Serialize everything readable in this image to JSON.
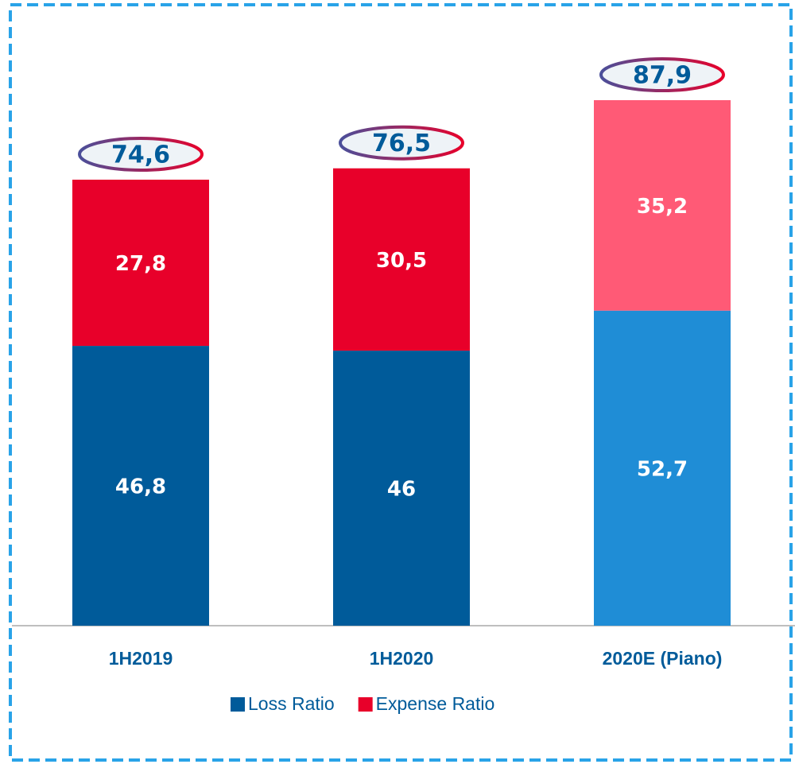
{
  "chart_data": {
    "type": "stacked_bar",
    "categories": [
      "1H2019",
      "1H2020",
      "2020E (Piano)"
    ],
    "series": [
      {
        "name": "Loss Ratio",
        "color": "#005b9a",
        "colors": [
          "#005b9a",
          "#005b9a",
          "#1f8dd6"
        ],
        "values": [
          46.8,
          46,
          52.7
        ],
        "value_labels": [
          "46,8",
          "46",
          "52,7"
        ]
      },
      {
        "name": "Expense Ratio",
        "color": "#e8002a",
        "colors": [
          "#e8002a",
          "#e8002a",
          "#ff5a76"
        ],
        "values": [
          27.8,
          30.5,
          35.2
        ],
        "value_labels": [
          "27,8",
          "30,5",
          "35,2"
        ]
      }
    ],
    "totals": {
      "values": [
        74.6,
        76.5,
        87.9
      ],
      "value_labels": [
        "74,6",
        "76,5",
        "87,9"
      ]
    },
    "ylim": [
      0,
      100
    ],
    "legend": "bottom"
  }
}
